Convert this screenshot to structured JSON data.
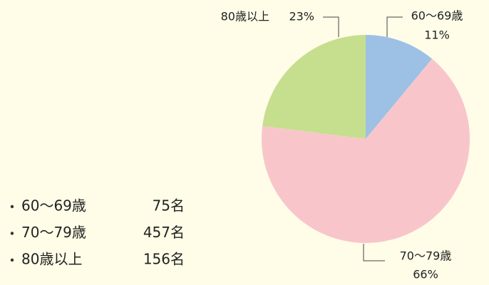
{
  "chart_data": {
    "type": "pie",
    "categories": [
      "60〜69歳",
      "70〜79歳",
      "80歳以上"
    ],
    "values": [
      11,
      66,
      23
    ],
    "value_labels": [
      "11%",
      "66%",
      "23%"
    ],
    "colors": [
      "#9dc0e5",
      "#f8c6ca",
      "#c6df8e"
    ],
    "counts": [
      75,
      457,
      156
    ],
    "count_labels": [
      "75名",
      "457名",
      "156名"
    ]
  }
}
